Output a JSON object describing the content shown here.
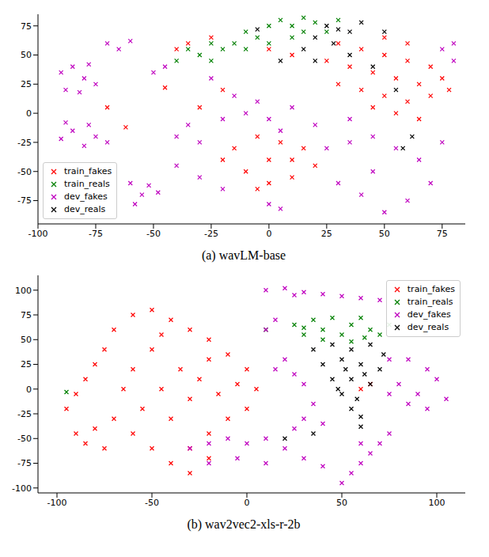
{
  "chart_data": [
    {
      "type": "scatter",
      "title": "(a) wavLM-base",
      "xlim": [
        -100,
        85
      ],
      "ylim": [
        -95,
        85
      ],
      "xticks": [
        -100,
        -75,
        -50,
        -25,
        0,
        25,
        50,
        75
      ],
      "yticks": [
        -75,
        -50,
        -25,
        0,
        25,
        50,
        75
      ],
      "grid": false,
      "legend": "lower left",
      "series": [
        {
          "name": "train_fakes",
          "color": "#ff0000",
          "marker": "x",
          "values": [
            [
              30,
              60
            ],
            [
              40,
              55
            ],
            [
              50,
              50
            ],
            [
              60,
              45
            ],
            [
              70,
              40
            ],
            [
              75,
              30
            ],
            [
              65,
              25
            ],
            [
              55,
              30
            ],
            [
              45,
              35
            ],
            [
              35,
              40
            ],
            [
              40,
              20
            ],
            [
              50,
              15
            ],
            [
              60,
              10
            ],
            [
              70,
              15
            ],
            [
              78,
              20
            ],
            [
              55,
              0
            ],
            [
              65,
              -5
            ],
            [
              45,
              5
            ],
            [
              30,
              25
            ],
            [
              25,
              45
            ],
            [
              60,
              60
            ],
            [
              50,
              65
            ],
            [
              -5,
              -20
            ],
            [
              5,
              -25
            ],
            [
              15,
              -30
            ],
            [
              20,
              -45
            ],
            [
              10,
              -55
            ],
            [
              0,
              -60
            ],
            [
              -10,
              -50
            ],
            [
              -20,
              -40
            ],
            [
              -15,
              -30
            ],
            [
              0,
              -40
            ],
            [
              10,
              -40
            ],
            [
              -5,
              -65
            ],
            [
              -35,
              60
            ],
            [
              -25,
              65
            ],
            [
              -40,
              55
            ],
            [
              -70,
              5
            ],
            [
              -62,
              -12
            ],
            [
              -45,
              22
            ],
            [
              -30,
              5
            ],
            [
              -20,
              20
            ],
            [
              0,
              55
            ],
            [
              10,
              50
            ]
          ]
        },
        {
          "name": "train_reals",
          "color": "#008000",
          "marker": "x",
          "values": [
            [
              -35,
              55
            ],
            [
              -30,
              50
            ],
            [
              -25,
              45
            ],
            [
              -20,
              55
            ],
            [
              -15,
              60
            ],
            [
              -10,
              70
            ],
            [
              -5,
              65
            ],
            [
              0,
              75
            ],
            [
              5,
              80
            ],
            [
              10,
              75
            ],
            [
              15,
              70
            ],
            [
              20,
              78
            ],
            [
              -25,
              60
            ],
            [
              -10,
              55
            ],
            [
              0,
              60
            ],
            [
              10,
              65
            ],
            [
              25,
              70
            ],
            [
              -40,
              45
            ],
            [
              30,
              80
            ],
            [
              15,
              82
            ]
          ]
        },
        {
          "name": "dev_fakes",
          "color": "#bf00bf",
          "marker": "x",
          "values": [
            [
              -90,
              35
            ],
            [
              -85,
              40
            ],
            [
              -80,
              30
            ],
            [
              -75,
              25
            ],
            [
              -88,
              20
            ],
            [
              -78,
              42
            ],
            [
              -82,
              18
            ],
            [
              -90,
              -22
            ],
            [
              -85,
              -15
            ],
            [
              -80,
              -28
            ],
            [
              -75,
              -20
            ],
            [
              -88,
              -8
            ],
            [
              -78,
              -10
            ],
            [
              -70,
              -25
            ],
            [
              -60,
              -60
            ],
            [
              -55,
              -70
            ],
            [
              -52,
              -62
            ],
            [
              -58,
              -78
            ],
            [
              -48,
              -68
            ],
            [
              -70,
              60
            ],
            [
              -65,
              55
            ],
            [
              -60,
              62
            ],
            [
              -40,
              -20
            ],
            [
              -30,
              -25
            ],
            [
              -35,
              -10
            ],
            [
              -20,
              -5
            ],
            [
              -10,
              0
            ],
            [
              0,
              -5
            ],
            [
              10,
              5
            ],
            [
              -5,
              10
            ],
            [
              5,
              -15
            ],
            [
              -15,
              15
            ],
            [
              -45,
              40
            ],
            [
              -50,
              35
            ],
            [
              -25,
              30
            ],
            [
              -40,
              -45
            ],
            [
              -30,
              -55
            ],
            [
              -20,
              -65
            ],
            [
              0,
              -78
            ],
            [
              5,
              -82
            ],
            [
              25,
              -30
            ],
            [
              35,
              -25
            ],
            [
              45,
              -20
            ],
            [
              55,
              -30
            ],
            [
              65,
              -40
            ],
            [
              70,
              -60
            ],
            [
              60,
              -75
            ],
            [
              50,
              -85
            ],
            [
              40,
              -70
            ],
            [
              30,
              -60
            ],
            [
              45,
              -50
            ],
            [
              75,
              -25
            ],
            [
              35,
              -5
            ],
            [
              20,
              -10
            ],
            [
              80,
              60
            ],
            [
              75,
              55
            ],
            [
              80,
              45
            ]
          ]
        },
        {
          "name": "dev_reals",
          "color": "#000000",
          "marker": "x",
          "values": [
            [
              20,
              65
            ],
            [
              25,
              75
            ],
            [
              30,
              72
            ],
            [
              35,
              70
            ],
            [
              28,
              60
            ],
            [
              15,
              55
            ],
            [
              40,
              78
            ],
            [
              5,
              45
            ],
            [
              20,
              45
            ],
            [
              35,
              50
            ],
            [
              45,
              40
            ],
            [
              55,
              20
            ],
            [
              62,
              -20
            ],
            [
              58,
              -30
            ],
            [
              -5,
              72
            ],
            [
              50,
              70
            ]
          ]
        }
      ]
    },
    {
      "type": "scatter",
      "title": "(b) wav2vec2-xls-r-2b",
      "xlim": [
        -110,
        115
      ],
      "ylim": [
        -105,
        115
      ],
      "xticks": [
        -100,
        -50,
        0,
        50,
        100
      ],
      "yticks": [
        -100,
        -75,
        -50,
        -25,
        0,
        25,
        50,
        75,
        100
      ],
      "grid": false,
      "legend": "upper right",
      "series": [
        {
          "name": "train_fakes",
          "color": "#ff0000",
          "marker": "x",
          "values": [
            [
              -95,
              -20
            ],
            [
              -90,
              -5
            ],
            [
              -85,
              10
            ],
            [
              -80,
              25
            ],
            [
              -75,
              40
            ],
            [
              -70,
              60
            ],
            [
              -60,
              75
            ],
            [
              -50,
              80
            ],
            [
              -40,
              70
            ],
            [
              -30,
              60
            ],
            [
              -20,
              50
            ],
            [
              -10,
              35
            ],
            [
              0,
              20
            ],
            [
              5,
              0
            ],
            [
              0,
              -20
            ],
            [
              -10,
              -30
            ],
            [
              -20,
              -45
            ],
            [
              -30,
              -60
            ],
            [
              -40,
              -75
            ],
            [
              -30,
              -85
            ],
            [
              -20,
              -70
            ],
            [
              -50,
              -60
            ],
            [
              -60,
              -45
            ],
            [
              -70,
              -30
            ],
            [
              -80,
              -40
            ],
            [
              -55,
              -20
            ],
            [
              -45,
              0
            ],
            [
              -35,
              20
            ],
            [
              -25,
              10
            ],
            [
              -15,
              -5
            ],
            [
              -60,
              20
            ],
            [
              -50,
              40
            ],
            [
              -65,
              0
            ],
            [
              -40,
              -30
            ],
            [
              -75,
              -60
            ],
            [
              -85,
              -55
            ],
            [
              -90,
              -45
            ],
            [
              -45,
              55
            ],
            [
              -20,
              30
            ],
            [
              -5,
              5
            ],
            [
              -30,
              -10
            ],
            [
              60,
              0
            ],
            [
              65,
              5
            ]
          ]
        },
        {
          "name": "train_reals",
          "color": "#008000",
          "marker": "x",
          "values": [
            [
              25,
              65
            ],
            [
              30,
              55
            ],
            [
              35,
              70
            ],
            [
              40,
              60
            ],
            [
              45,
              72
            ],
            [
              50,
              55
            ],
            [
              55,
              65
            ],
            [
              60,
              72
            ],
            [
              65,
              60
            ],
            [
              70,
              55
            ],
            [
              75,
              65
            ],
            [
              40,
              50
            ],
            [
              55,
              48
            ],
            [
              30,
              62
            ],
            [
              62,
              52
            ],
            [
              -95,
              -3
            ],
            [
              10,
              60
            ]
          ]
        },
        {
          "name": "dev_fakes",
          "color": "#bf00bf",
          "marker": "x",
          "values": [
            [
              10,
              100
            ],
            [
              20,
              102
            ],
            [
              30,
              98
            ],
            [
              40,
              96
            ],
            [
              50,
              94
            ],
            [
              60,
              92
            ],
            [
              70,
              90
            ],
            [
              25,
              95
            ],
            [
              15,
              70
            ],
            [
              10,
              60
            ],
            [
              30,
              -30
            ],
            [
              40,
              -35
            ],
            [
              35,
              -15
            ],
            [
              25,
              -40
            ],
            [
              -30,
              -60
            ],
            [
              -20,
              -55
            ],
            [
              -10,
              -50
            ],
            [
              0,
              -55
            ],
            [
              10,
              -50
            ],
            [
              20,
              -60
            ],
            [
              30,
              -70
            ],
            [
              40,
              -78
            ],
            [
              10,
              -75
            ],
            [
              -5,
              -70
            ],
            [
              -20,
              -75
            ],
            [
              75,
              -5
            ],
            [
              80,
              5
            ],
            [
              85,
              30
            ],
            [
              95,
              20
            ],
            [
              100,
              10
            ],
            [
              105,
              -10
            ],
            [
              95,
              -20
            ],
            [
              85,
              -15
            ],
            [
              75,
              30
            ],
            [
              90,
              -5
            ],
            [
              50,
              -95
            ],
            [
              55,
              -85
            ],
            [
              60,
              -75
            ],
            [
              65,
              -65
            ],
            [
              70,
              -55
            ],
            [
              75,
              -45
            ],
            [
              60,
              -55
            ],
            [
              20,
              30
            ],
            [
              25,
              15
            ],
            [
              30,
              5
            ],
            [
              15,
              20
            ]
          ]
        },
        {
          "name": "dev_reals",
          "color": "#000000",
          "marker": "x",
          "values": [
            [
              35,
              40
            ],
            [
              45,
              45
            ],
            [
              55,
              40
            ],
            [
              65,
              45
            ],
            [
              72,
              35
            ],
            [
              40,
              25
            ],
            [
              50,
              30
            ],
            [
              60,
              25
            ],
            [
              70,
              20
            ],
            [
              45,
              10
            ],
            [
              55,
              10
            ],
            [
              65,
              5
            ],
            [
              50,
              -5
            ],
            [
              58,
              -10
            ],
            [
              55,
              -20
            ],
            [
              60,
              -28
            ],
            [
              48,
              0
            ],
            [
              62,
              15
            ],
            [
              52,
              20
            ],
            [
              20,
              -50
            ],
            [
              35,
              -45
            ],
            [
              60,
              -38
            ]
          ]
        }
      ]
    }
  ]
}
